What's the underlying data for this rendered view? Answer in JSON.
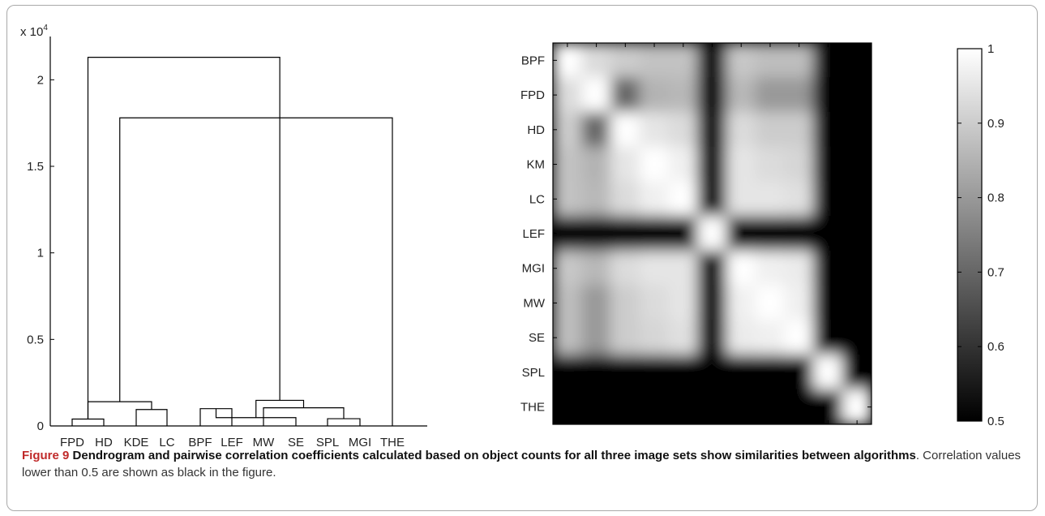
{
  "caption": {
    "figure_label": "Figure 9",
    "bold_text": "Dendrogram and pairwise correlation coefficients calculated based on object counts for all three image sets show similarities between algorithms",
    "rest_text": ". Correlation values lower than 0.5 are shown as black in the figure."
  },
  "chart_data": [
    {
      "type": "dendrogram",
      "y_multiplier_label": "x 10",
      "y_multiplier_exp": "4",
      "ylim": [
        0,
        22500
      ],
      "yticks": [
        0,
        5000,
        10000,
        15000,
        20000
      ],
      "ytick_labels": [
        "0",
        "0.5",
        "1",
        "1.5",
        "2"
      ],
      "leaves": [
        "FPD",
        "HD",
        "KDE",
        "LC",
        "BPF",
        "LEF",
        "MW",
        "SE",
        "SPL",
        "MGI",
        "THE"
      ],
      "merges": [
        {
          "a": 0,
          "b": 1,
          "h": 400
        },
        {
          "a": 2,
          "b": 3,
          "h": 950
        },
        {
          "a": 4,
          "b": 5,
          "h": 1000
        },
        {
          "a": 8,
          "b": 9,
          "h": 420
        },
        {
          "a": 7,
          "b": 13,
          "h": 480
        },
        {
          "a": 6,
          "b": 14,
          "h": 1050
        },
        {
          "a": 11,
          "b": 12,
          "h": 1400
        },
        {
          "a": 16,
          "b": 15,
          "h": 1480
        },
        {
          "a": 17,
          "b": 10,
          "h": 17800
        },
        {
          "a": 18,
          "b": 11,
          "h": 21300
        }
      ]
    },
    {
      "type": "heatmap",
      "labels": [
        "BPF",
        "FPD",
        "HD",
        "KM",
        "LC",
        "LEF",
        "MGI",
        "MW",
        "SE",
        "SPL",
        "THE"
      ],
      "colorbar": {
        "min": 0.5,
        "max": 1,
        "ticks": [
          0.5,
          0.6,
          0.7,
          0.8,
          0.9,
          1
        ],
        "tick_labels": [
          "0.5",
          "0.6",
          "0.7",
          "0.8",
          "0.9",
          "1"
        ]
      },
      "matrix": [
        [
          1.0,
          0.93,
          0.9,
          0.88,
          0.88,
          0.4,
          0.89,
          0.87,
          0.87,
          0.4,
          0.4
        ],
        [
          0.93,
          1.0,
          0.7,
          0.85,
          0.86,
          0.4,
          0.86,
          0.8,
          0.8,
          0.4,
          0.4
        ],
        [
          0.9,
          0.7,
          1.0,
          0.95,
          0.93,
          0.4,
          0.93,
          0.9,
          0.9,
          0.4,
          0.4
        ],
        [
          0.88,
          0.85,
          0.95,
          1.0,
          0.97,
          0.4,
          0.95,
          0.93,
          0.92,
          0.4,
          0.4
        ],
        [
          0.88,
          0.86,
          0.93,
          0.97,
          1.0,
          0.4,
          0.95,
          0.95,
          0.94,
          0.4,
          0.4
        ],
        [
          0.4,
          0.4,
          0.4,
          0.4,
          0.4,
          1.0,
          0.4,
          0.4,
          0.4,
          0.4,
          0.4
        ],
        [
          0.89,
          0.86,
          0.93,
          0.95,
          0.95,
          0.4,
          1.0,
          0.97,
          0.96,
          0.4,
          0.4
        ],
        [
          0.87,
          0.8,
          0.9,
          0.93,
          0.95,
          0.4,
          0.97,
          1.0,
          0.97,
          0.4,
          0.4
        ],
        [
          0.87,
          0.8,
          0.9,
          0.92,
          0.94,
          0.4,
          0.96,
          0.97,
          1.0,
          0.4,
          0.4
        ],
        [
          0.4,
          0.4,
          0.4,
          0.4,
          0.4,
          0.4,
          0.4,
          0.4,
          0.4,
          1.0,
          0.4
        ],
        [
          0.4,
          0.4,
          0.4,
          0.4,
          0.4,
          0.4,
          0.4,
          0.4,
          0.4,
          0.4,
          1.0
        ]
      ]
    }
  ]
}
